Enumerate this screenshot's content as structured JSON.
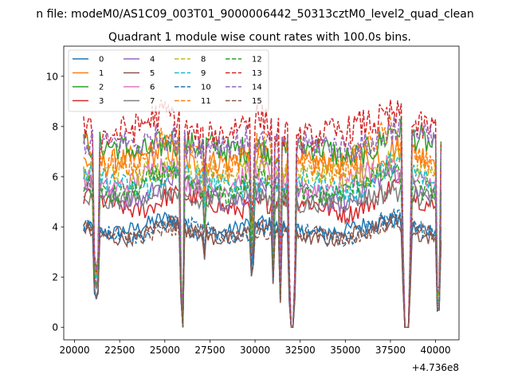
{
  "chart_data": {
    "type": "line",
    "suptitle": "n file: modeM0/AS1C09_003T01_9000006442_50313cztM0_level2_quad_clean",
    "title": "Quadrant 1 module wise count rates with 100.0s bins.",
    "xlabel": "",
    "ylabel": "",
    "x_offset_label": "+4.736e8",
    "xlim": [
      19400,
      41300
    ],
    "ylim": [
      -0.5,
      11.2
    ],
    "xticks": [
      20000,
      22500,
      25000,
      27500,
      30000,
      32500,
      35000,
      37500,
      40000
    ],
    "xtick_labels": [
      "20000",
      "22500",
      "25000",
      "27500",
      "30000",
      "32500",
      "35000",
      "37500",
      "40000"
    ],
    "yticks": [
      0,
      2,
      4,
      6,
      8,
      10
    ],
    "ytick_labels": [
      "0",
      "2",
      "4",
      "6",
      "8",
      "10"
    ],
    "legend_position": "upper-left",
    "x_range": [
      20500,
      40300
    ],
    "bin_seconds": 100,
    "dips": [
      {
        "start": 21000,
        "end": 21400,
        "min_fraction": 0.3
      },
      {
        "start": 25850,
        "end": 26100,
        "min_fraction": 0.0
      },
      {
        "start": 27100,
        "end": 27300,
        "min_fraction": 0.75
      },
      {
        "start": 29700,
        "end": 29950,
        "min_fraction": 0.55
      },
      {
        "start": 30900,
        "end": 31050,
        "min_fraction": 0.45
      },
      {
        "start": 31300,
        "end": 31500,
        "min_fraction": 0.25
      },
      {
        "start": 31800,
        "end": 32300,
        "min_fraction": 0.0
      },
      {
        "start": 38100,
        "end": 38700,
        "min_fraction": 0.0
      },
      {
        "start": 40000,
        "end": 40300,
        "min_fraction": 0.2
      }
    ],
    "envelope": {
      "x": [
        20500,
        21800,
        23500,
        25200,
        26600,
        28500,
        30200,
        32500,
        33500,
        35000,
        36500,
        37700,
        39000,
        40300
      ],
      "scale": [
        1.0,
        0.94,
        0.93,
        1.05,
        0.97,
        0.92,
        1.0,
        0.95,
        0.93,
        0.91,
        1.0,
        1.08,
        0.98,
        0.92
      ]
    },
    "series": [
      {
        "name": "0",
        "level": 4.1,
        "color": "#1f77b4",
        "dash": "solid"
      },
      {
        "name": "1",
        "level": 6.9,
        "color": "#ff7f0e",
        "dash": "solid"
      },
      {
        "name": "2",
        "level": 7.4,
        "color": "#2ca02c",
        "dash": "solid"
      },
      {
        "name": "3",
        "level": 5.1,
        "color": "#d62728",
        "dash": "solid"
      },
      {
        "name": "4",
        "level": 5.6,
        "color": "#9467bd",
        "dash": "solid"
      },
      {
        "name": "5",
        "level": 3.9,
        "color": "#8c564b",
        "dash": "solid"
      },
      {
        "name": "6",
        "level": 6.1,
        "color": "#e377c2",
        "dash": "solid"
      },
      {
        "name": "7",
        "level": 5.3,
        "color": "#7f7f7f",
        "dash": "solid"
      },
      {
        "name": "8",
        "level": 6.4,
        "color": "#bcbd22",
        "dash": "dashed"
      },
      {
        "name": "9",
        "level": 6.0,
        "color": "#17becf",
        "dash": "dashed"
      },
      {
        "name": "10",
        "level": 4.0,
        "color": "#1f77b4",
        "dash": "dashed"
      },
      {
        "name": "11",
        "level": 7.1,
        "color": "#ff7f0e",
        "dash": "dashed"
      },
      {
        "name": "12",
        "level": 5.8,
        "color": "#2ca02c",
        "dash": "dashed"
      },
      {
        "name": "13",
        "level": 8.2,
        "color": "#d62728",
        "dash": "dashed"
      },
      {
        "name": "14",
        "level": 7.6,
        "color": "#9467bd",
        "dash": "dashed"
      },
      {
        "name": "15",
        "level": 3.9,
        "color": "#8c564b",
        "dash": "dashed"
      }
    ]
  }
}
